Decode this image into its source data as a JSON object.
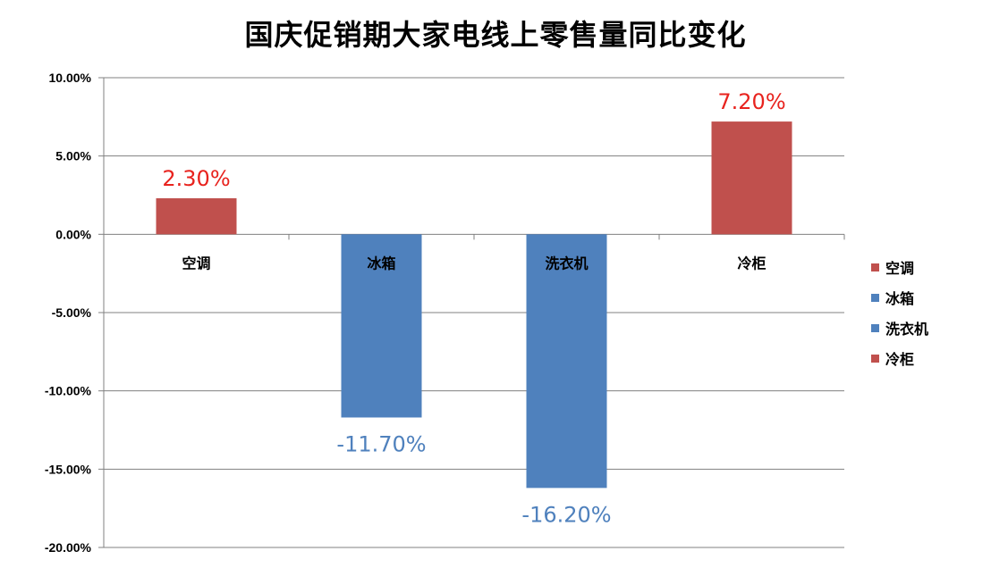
{
  "chart_data": {
    "type": "bar",
    "title": "国庆促销期大家电线上零售量同比变化",
    "categories": [
      "空调",
      "冰箱",
      "洗衣机",
      "冷柜"
    ],
    "values": [
      2.3,
      -11.7,
      -16.2,
      7.2
    ],
    "value_labels": [
      "2.30%",
      "-11.70%",
      "-16.20%",
      "7.20%"
    ],
    "colors": [
      "#C0504D",
      "#4F81BD",
      "#4F81BD",
      "#C0504D"
    ],
    "label_colors": [
      "#E8231E",
      "#4F81BD",
      "#4F81BD",
      "#E8231E"
    ],
    "ylim": [
      -20,
      10
    ],
    "yticks": [
      10,
      5,
      0,
      -5,
      -10,
      -15,
      -20
    ],
    "ytick_labels": [
      "10.00%",
      "5.00%",
      "0.00%",
      "-5.00%",
      "-10.00%",
      "-15.00%",
      "-20.00%"
    ],
    "xlabel": "",
    "ylabel": "",
    "grid": true,
    "legend": {
      "position": "right",
      "entries": [
        "空调",
        "冰箱",
        "洗衣机",
        "冷柜"
      ],
      "colors": [
        "#C0504D",
        "#4F81BD",
        "#4F81BD",
        "#C0504D"
      ]
    }
  }
}
